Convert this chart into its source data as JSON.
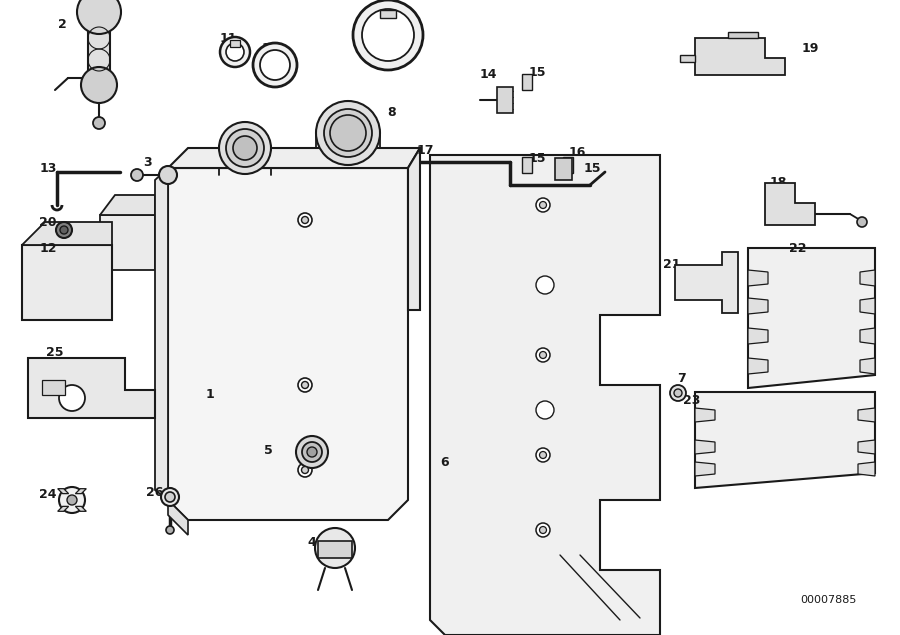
{
  "bg_color": "#ffffff",
  "line_color": "#1a1a1a",
  "part_number": "00007885",
  "lw_main": 1.3,
  "lw_thin": 0.8,
  "label_fs": 9,
  "figw": 9.0,
  "figh": 6.35,
  "dpi": 100
}
